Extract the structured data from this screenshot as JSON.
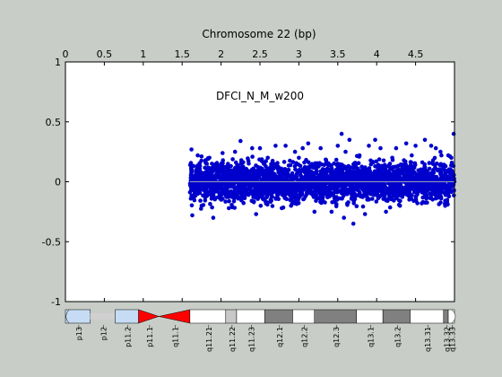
{
  "chart_data": {
    "type": "scatter",
    "title": "Chromosome 22 (bp)",
    "annotation": "DFCI_N_M_w200",
    "xlim": [
      0,
      5
    ],
    "ylim": [
      -1,
      1
    ],
    "x_axis_position": "top",
    "grid": false,
    "x_ticks": [
      {
        "value": 0,
        "label": "0"
      },
      {
        "value": 0.5,
        "label": "0.5"
      },
      {
        "value": 1,
        "label": "1"
      },
      {
        "value": 1.5,
        "label": "1.5"
      },
      {
        "value": 2,
        "label": "2"
      },
      {
        "value": 2.5,
        "label": "2.5"
      },
      {
        "value": 3,
        "label": "3"
      },
      {
        "value": 3.5,
        "label": "3.5"
      },
      {
        "value": 4,
        "label": "4"
      },
      {
        "value": 4.5,
        "label": "4.5"
      }
    ],
    "y_ticks": [
      {
        "value": 1,
        "label": "1"
      },
      {
        "value": 0.5,
        "label": "0.5"
      },
      {
        "value": 0,
        "label": "0"
      },
      {
        "value": -0.5,
        "label": "-0.5"
      },
      {
        "value": -1,
        "label": "-1"
      }
    ],
    "series": [
      {
        "color": "#0000cc",
        "marker": "asterisk",
        "x_range": [
          1.6,
          5.0
        ],
        "y_typical_range": [
          -0.25,
          0.2
        ],
        "points": [
          [
            1.62,
            0.27
          ],
          [
            1.63,
            -0.28
          ],
          [
            1.7,
            0.22
          ],
          [
            1.75,
            -0.2
          ],
          [
            1.8,
            0.18
          ],
          [
            1.85,
            0.2
          ],
          [
            1.9,
            -0.3
          ],
          [
            1.98,
            0.1
          ],
          [
            2.02,
            0.24
          ],
          [
            2.1,
            -0.22
          ],
          [
            2.18,
            0.25
          ],
          [
            2.25,
            0.34
          ],
          [
            2.32,
            -0.1
          ],
          [
            2.4,
            0.28
          ],
          [
            2.45,
            -0.27
          ],
          [
            2.5,
            0.28
          ],
          [
            2.55,
            0.15
          ],
          [
            2.6,
            0.2
          ],
          [
            2.7,
            0.3
          ],
          [
            2.78,
            -0.22
          ],
          [
            2.83,
            0.3
          ],
          [
            2.9,
            -0.2
          ],
          [
            2.95,
            0.25
          ],
          [
            3.0,
            0.2
          ],
          [
            3.05,
            0.28
          ],
          [
            3.12,
            0.32
          ],
          [
            3.2,
            -0.25
          ],
          [
            3.28,
            0.28
          ],
          [
            3.35,
            0.18
          ],
          [
            3.42,
            -0.25
          ],
          [
            3.5,
            0.3
          ],
          [
            3.55,
            0.4
          ],
          [
            3.58,
            -0.3
          ],
          [
            3.6,
            0.25
          ],
          [
            3.65,
            0.35
          ],
          [
            3.7,
            -0.35
          ],
          [
            3.78,
            0.22
          ],
          [
            3.85,
            -0.27
          ],
          [
            3.9,
            0.3
          ],
          [
            3.98,
            0.35
          ],
          [
            4.05,
            0.28
          ],
          [
            4.12,
            -0.25
          ],
          [
            4.2,
            0.2
          ],
          [
            4.25,
            0.28
          ],
          [
            4.3,
            -0.2
          ],
          [
            4.38,
            0.32
          ],
          [
            4.45,
            0.22
          ],
          [
            4.5,
            0.3
          ],
          [
            4.58,
            -0.18
          ],
          [
            4.62,
            0.35
          ],
          [
            4.7,
            0.3
          ],
          [
            4.76,
            0.28
          ],
          [
            4.82,
            0.25
          ],
          [
            4.88,
            -0.2
          ],
          [
            4.92,
            0.22
          ],
          [
            4.96,
            0.2
          ],
          [
            4.99,
            0.4
          ]
        ]
      }
    ],
    "reference_line_y": 0,
    "ideogram": {
      "bands": [
        {
          "label": "p13",
          "start": 0.0,
          "end": 0.32,
          "stain": "acen-light"
        },
        {
          "label": "p12",
          "start": 0.32,
          "end": 0.64,
          "stain": "stalk"
        },
        {
          "label": "p11.2",
          "start": 0.64,
          "end": 0.94,
          "stain": "acen-light"
        },
        {
          "label": "p11.1",
          "start": 0.94,
          "end": 1.2,
          "stain": "centromere-p"
        },
        {
          "label": "q11.1",
          "start": 1.2,
          "end": 1.6,
          "stain": "centromere-q"
        },
        {
          "label": "q11.21",
          "start": 1.6,
          "end": 2.06,
          "stain": "gneg"
        },
        {
          "label": "q11.22",
          "start": 2.06,
          "end": 2.2,
          "stain": "gpos25"
        },
        {
          "label": "q11.23",
          "start": 2.2,
          "end": 2.56,
          "stain": "gneg"
        },
        {
          "label": "q12.1",
          "start": 2.56,
          "end": 2.92,
          "stain": "gpos75"
        },
        {
          "label": "q12.2",
          "start": 2.92,
          "end": 3.2,
          "stain": "gneg"
        },
        {
          "label": "q12.3",
          "start": 3.2,
          "end": 3.74,
          "stain": "gpos75"
        },
        {
          "label": "q13.1",
          "start": 3.74,
          "end": 4.08,
          "stain": "gneg"
        },
        {
          "label": "q13.2",
          "start": 4.08,
          "end": 4.43,
          "stain": "gpos75"
        },
        {
          "label": "q13.31",
          "start": 4.43,
          "end": 4.86,
          "stain": "gneg"
        },
        {
          "label": "q13.32",
          "start": 4.86,
          "end": 4.92,
          "stain": "gpos75"
        },
        {
          "label": "q13.33",
          "start": 4.92,
          "end": 5.0,
          "stain": "gneg"
        }
      ]
    }
  },
  "colors": {
    "background": "#c8cdc8",
    "plot_area": "#ffffff",
    "marker": "#0000cc",
    "centromere": "#ff0000",
    "acen_light": "#c6dcf4",
    "stalk": "#d0d0d0",
    "gpos25": "#c8c8c8",
    "gpos75": "#808080"
  }
}
